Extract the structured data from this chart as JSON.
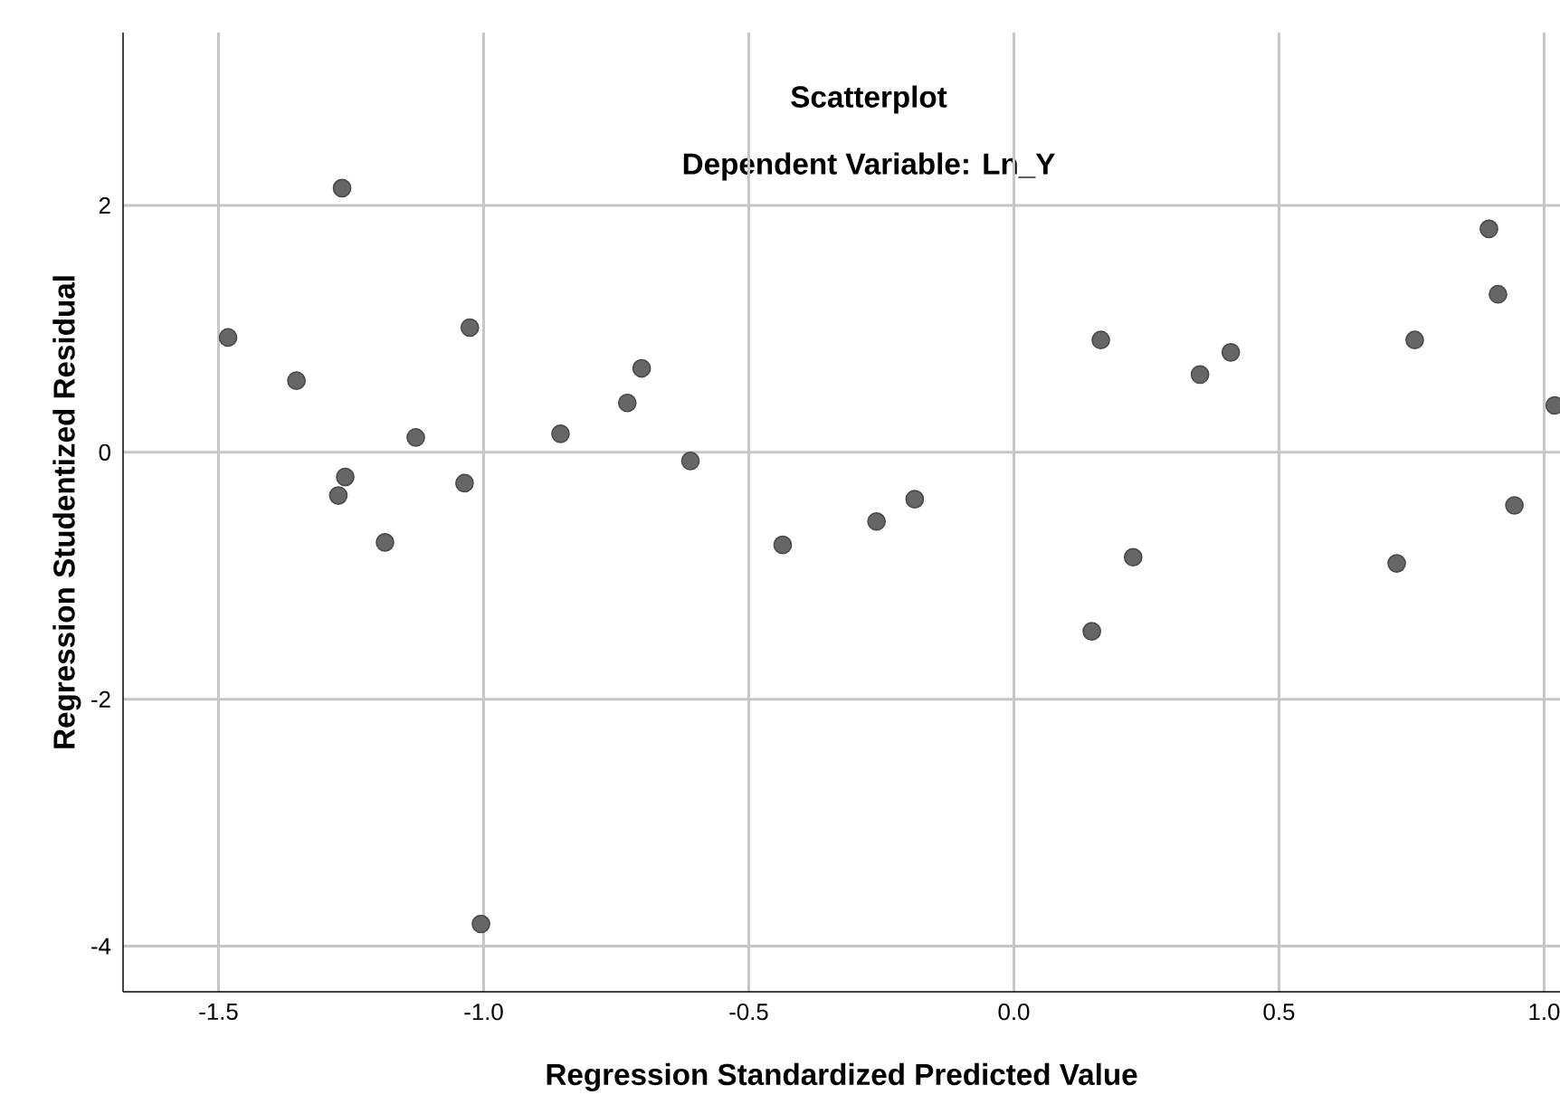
{
  "chart_data": {
    "type": "scatter",
    "title": "Scatterplot",
    "subtitle": "Dependent Variable: Ln_Y",
    "xlabel": "Regression Standardized Predicted Value",
    "ylabel": "Regression Studentized Residual",
    "x": [
      -1.482,
      -1.353,
      -1.267,
      -1.274,
      -1.261,
      -1.186,
      -1.128,
      -1.036,
      -1.026,
      -1.005,
      -0.855,
      -0.729,
      -0.702,
      -0.61,
      -0.436,
      -0.259,
      -0.187,
      0.147,
      0.164,
      0.225,
      0.351,
      0.409,
      0.722,
      0.756,
      0.896,
      0.913,
      0.944,
      1.02
    ],
    "values": [
      0.93,
      0.58,
      2.14,
      -0.35,
      -0.2,
      -0.73,
      0.12,
      -0.25,
      1.01,
      -3.82,
      0.15,
      0.4,
      0.68,
      -0.07,
      -0.75,
      -0.56,
      -0.38,
      -1.45,
      0.91,
      -0.85,
      0.63,
      0.81,
      -0.9,
      0.91,
      1.81,
      1.28,
      -0.43,
      0.38
    ],
    "color": "#666666",
    "grid": true,
    "xlim": [
      -1.68,
      1.03
    ],
    "ylim": [
      -4.37,
      3.4
    ],
    "xticks": [
      -1.5,
      {
        "value": -1.0,
        "label": "-1.0"
      },
      -0.5,
      {
        "value": 0.0,
        "label": "0.0"
      },
      0.5,
      {
        "value": 1.0,
        "label": "1.0"
      }
    ],
    "yticks": [
      -4,
      -2,
      0,
      2
    ]
  }
}
